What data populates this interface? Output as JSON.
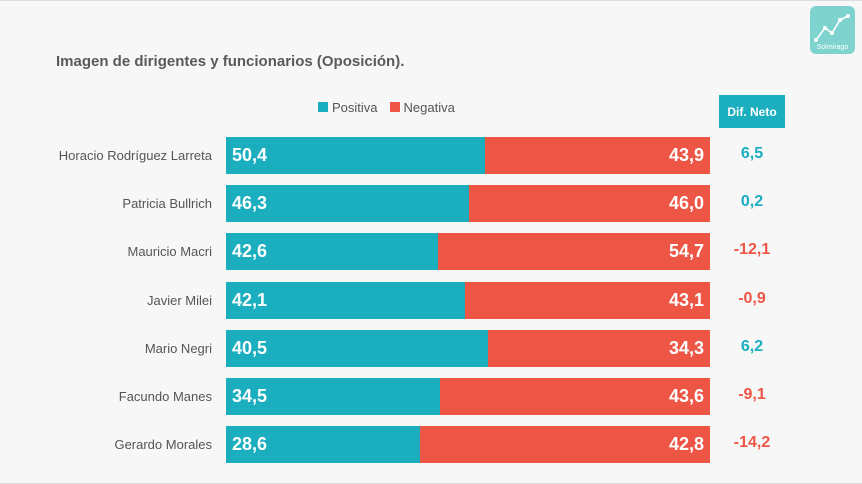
{
  "header": {
    "title": "Imagen de dirigentes y funcionarios (Oposición).",
    "logo_text": "Solmirago"
  },
  "legend": {
    "positive_label": "Positiva",
    "negative_label": "Negativa"
  },
  "dif_header": "Dif. Neto",
  "colors": {
    "positive": "#1aaebf",
    "negative": "#ed5545",
    "dif_positive": "#1aaebf",
    "dif_negative": "#ed5545"
  },
  "chart_data": {
    "type": "bar",
    "orientation": "horizontal",
    "stacked": true,
    "title": "Imagen de dirigentes y funcionarios (Oposición).",
    "categories": [
      "Horacio Rodríguez Larreta",
      "Patricia Bullrich",
      "Mauricio Macri",
      "Javier Milei",
      "Mario Negri",
      "Facundo Manes",
      "Gerardo Morales"
    ],
    "series": [
      {
        "name": "Positiva",
        "values": [
          50.4,
          46.3,
          42.6,
          42.1,
          40.5,
          34.5,
          28.6
        ],
        "labels": [
          "50,4",
          "46,3",
          "42,6",
          "42,1",
          "40,5",
          "34,5",
          "28,6"
        ]
      },
      {
        "name": "Negativa",
        "values": [
          43.9,
          46.0,
          54.7,
          43.1,
          34.3,
          43.6,
          42.8
        ],
        "labels": [
          "43,9",
          "46,0",
          "54,7",
          "43,1",
          "34,3",
          "43,6",
          "42,8"
        ]
      }
    ],
    "dif_neto": {
      "values": [
        6.5,
        0.2,
        -12.1,
        -0.9,
        6.2,
        -9.1,
        -14.2
      ],
      "labels": [
        "6,5",
        "0,2",
        "-12,1",
        "-0,9",
        "6,2",
        "-9,1",
        "-14,2"
      ]
    },
    "legend_position": "top",
    "grid": false
  }
}
